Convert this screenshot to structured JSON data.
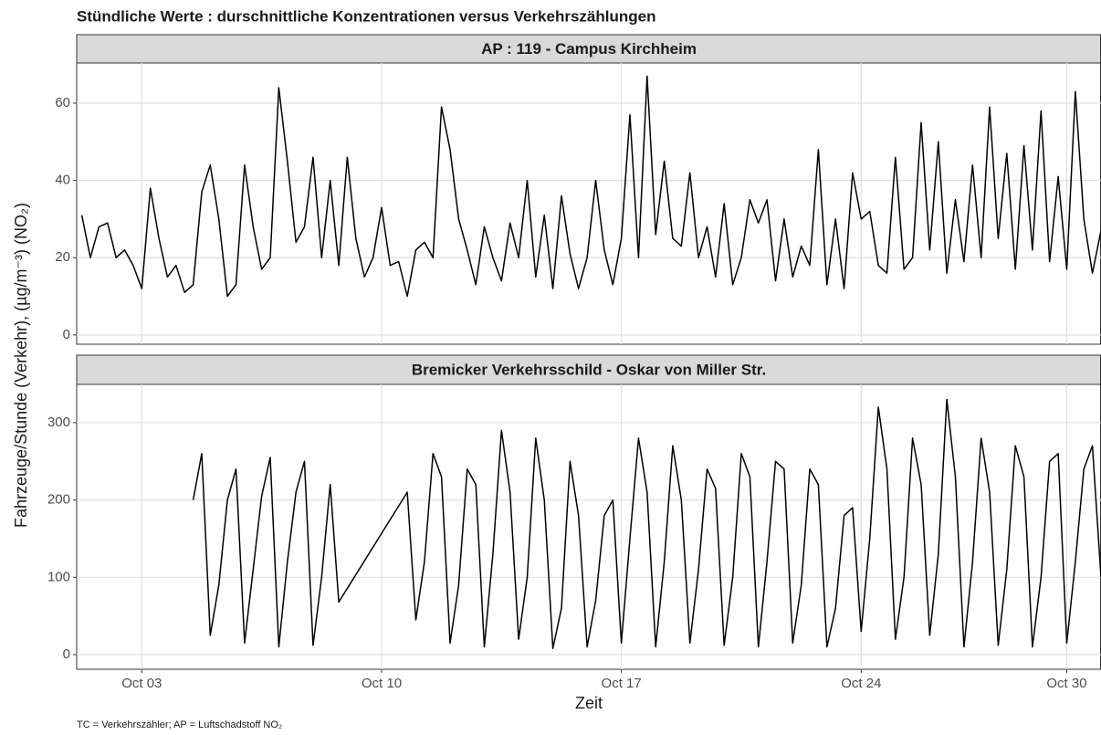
{
  "title": "Stündliche Werte : durschnittliche Konzentrationen versus Verkehrszählungen",
  "y_label": "Fahrzeuge/Stunde (Verkehr), (µg/m⁻³) (NO₂)",
  "x_label": "Zeit",
  "caption": "TC = Verkehrszähler; AP = Luftschadstoff NO₂",
  "chart_data": [
    {
      "type": "line",
      "title": "AP : 119 - Campus Kirchheim",
      "color": "#000000",
      "grid": true,
      "xlim": [
        1.1,
        31.0
      ],
      "xticks": [
        3,
        10,
        17,
        24,
        30
      ],
      "ylim": [
        -2.4,
        70.4
      ],
      "yticks": [
        0,
        20,
        40,
        60
      ],
      "x": [
        1.25,
        1.5,
        1.75,
        2,
        2.25,
        2.5,
        2.75,
        3,
        3.25,
        3.5,
        3.75,
        4,
        4.25,
        4.5,
        4.75,
        5,
        5.25,
        5.5,
        5.75,
        6,
        6.25,
        6.5,
        6.75,
        7,
        7.25,
        7.5,
        7.75,
        8,
        8.25,
        8.5,
        8.75,
        9,
        9.25,
        9.5,
        9.75,
        10,
        10.25,
        10.5,
        10.75,
        11,
        11.25,
        11.5,
        11.75,
        12,
        12.25,
        12.5,
        12.75,
        13,
        13.25,
        13.5,
        13.75,
        14,
        14.25,
        14.5,
        14.75,
        15,
        15.25,
        15.5,
        15.75,
        16,
        16.25,
        16.5,
        16.75,
        17,
        17.25,
        17.5,
        17.75,
        18,
        18.25,
        18.5,
        18.75,
        19,
        19.25,
        19.5,
        19.75,
        20,
        20.25,
        20.5,
        20.75,
        21,
        21.25,
        21.5,
        21.75,
        22,
        22.25,
        22.5,
        22.75,
        23,
        23.25,
        23.5,
        23.75,
        24,
        24.25,
        24.5,
        24.75,
        25,
        25.25,
        25.5,
        25.75,
        26,
        26.25,
        26.5,
        26.75,
        27,
        27.25,
        27.5,
        27.75,
        28,
        28.25,
        28.5,
        28.75,
        29,
        29.25,
        29.5,
        29.75,
        30,
        30.25,
        30.5,
        30.75,
        31
      ],
      "values": [
        31,
        20,
        28,
        29,
        20,
        22,
        18,
        12,
        38,
        25,
        15,
        18,
        11,
        13,
        37,
        44,
        30,
        10,
        13,
        44,
        28,
        17,
        20,
        64,
        45,
        24,
        28,
        46,
        20,
        40,
        18,
        46,
        25,
        15,
        20,
        33,
        18,
        19,
        10,
        22,
        24,
        20,
        59,
        48,
        30,
        22,
        13,
        28,
        20,
        14,
        29,
        20,
        40,
        15,
        31,
        12,
        36,
        21,
        12,
        20,
        40,
        22,
        13,
        25,
        57,
        20,
        67,
        26,
        45,
        25,
        23,
        42,
        20,
        28,
        15,
        34,
        13,
        20,
        35,
        29,
        35,
        14,
        30,
        15,
        23,
        18,
        48,
        13,
        30,
        12,
        42,
        30,
        32,
        18,
        16,
        46,
        17,
        20,
        55,
        22,
        50,
        16,
        35,
        19,
        44,
        20,
        59,
        25,
        47,
        17,
        49,
        22,
        58,
        19,
        41,
        17,
        63,
        30,
        16,
        27
      ]
    },
    {
      "type": "line",
      "title": "Bremicker Verkehrsschild - Oskar von Miller Str.",
      "color": "#000000",
      "grid": true,
      "xlim": [
        1.1,
        31.0
      ],
      "xticks": [
        {
          "value": 3,
          "label": "Oct 03"
        },
        {
          "value": 10,
          "label": "Oct 10"
        },
        {
          "value": 17,
          "label": "Oct 17"
        },
        {
          "value": 24,
          "label": "Oct 24"
        },
        {
          "value": 30,
          "label": "Oct 30"
        }
      ],
      "ylim": [
        -18.9,
        349.5
      ],
      "yticks": [
        0,
        100,
        200,
        300
      ],
      "x": [
        4.5,
        4.75,
        5,
        5.25,
        5.5,
        5.75,
        6,
        6.25,
        6.5,
        6.75,
        7,
        7.25,
        7.5,
        7.75,
        8,
        8.25,
        8.5,
        8.75,
        10.75,
        11,
        11.25,
        11.5,
        11.75,
        12,
        12.25,
        12.5,
        12.75,
        13,
        13.25,
        13.5,
        13.75,
        14,
        14.25,
        14.5,
        14.75,
        15,
        15.25,
        15.5,
        15.75,
        16,
        16.25,
        16.5,
        16.75,
        17,
        17.25,
        17.5,
        17.75,
        18,
        18.25,
        18.5,
        18.75,
        19,
        19.25,
        19.5,
        19.75,
        20,
        20.25,
        20.5,
        20.75,
        21,
        21.25,
        21.5,
        21.75,
        22,
        22.25,
        22.5,
        22.75,
        23,
        23.25,
        23.5,
        23.75,
        24,
        24.25,
        24.5,
        24.75,
        25,
        25.25,
        25.5,
        25.75,
        26,
        26.25,
        26.5,
        26.75,
        27,
        27.25,
        27.5,
        27.75,
        28,
        28.25,
        28.5,
        28.75,
        29,
        29.25,
        29.5,
        29.75,
        30,
        30.25,
        30.5,
        30.75,
        31
      ],
      "values": [
        200,
        260,
        25,
        90,
        200,
        240,
        15,
        110,
        205,
        255,
        10,
        120,
        210,
        250,
        12,
        100,
        220,
        68,
        210,
        45,
        120,
        260,
        230,
        15,
        90,
        240,
        220,
        10,
        130,
        290,
        210,
        20,
        100,
        280,
        200,
        8,
        60,
        250,
        180,
        10,
        70,
        180,
        200,
        15,
        150,
        280,
        210,
        10,
        120,
        270,
        200,
        15,
        110,
        240,
        215,
        12,
        100,
        260,
        230,
        10,
        120,
        250,
        240,
        15,
        90,
        240,
        220,
        10,
        60,
        180,
        190,
        30,
        150,
        320,
        240,
        20,
        100,
        280,
        220,
        25,
        130,
        330,
        230,
        10,
        120,
        280,
        210,
        12,
        110,
        270,
        230,
        10,
        100,
        250,
        260,
        15,
        120,
        240,
        270,
        100
      ]
    }
  ]
}
